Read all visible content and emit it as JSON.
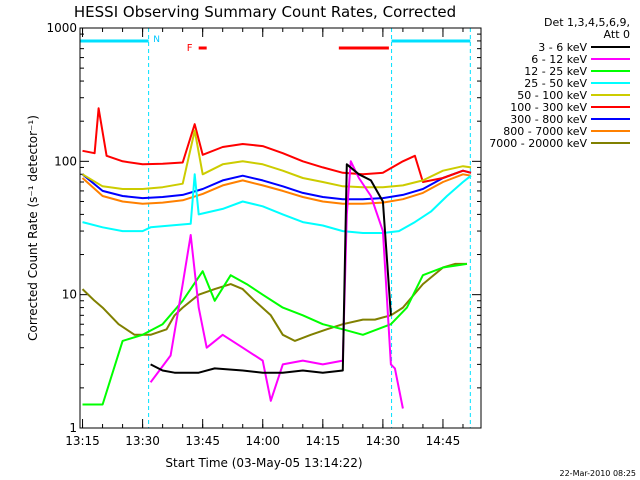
{
  "chart_data": {
    "type": "line",
    "title": "HESSI Observing Summary Count Rates, Corrected",
    "xlabel": "Start Time (03-May-05 13:14:22)",
    "ylabel": "Corrected Count Rate (s⁻¹ detector⁻¹)",
    "x_ticks": [
      "13:15",
      "13:30",
      "13:45",
      "14:00",
      "14:15",
      "14:30",
      "14:45"
    ],
    "y_ticks": [
      "1",
      "10",
      "100",
      "1000"
    ],
    "y_scale": "log",
    "ylim": [
      1,
      1000
    ],
    "xlim": [
      "13:14:22",
      "14:54:30"
    ],
    "legend_header": [
      "Det 1,3,4,5,6,9,",
      "Att 0"
    ],
    "legend_position": "right",
    "night_boundaries": [
      "13:31:30",
      "14:32:10",
      "14:51:50"
    ],
    "saa_bar": {
      "label": "N",
      "segments": [
        [
          "13:14:22",
          "13:31:30"
        ],
        [
          "14:32:10",
          "14:51:50"
        ]
      ]
    },
    "flare_bar": {
      "label": "F",
      "segments": [
        [
          "13:44:00",
          "13:46:00"
        ],
        [
          "14:19:00",
          "14:31:30"
        ]
      ]
    },
    "series": [
      {
        "name": "3 - 6 keV",
        "color": "#000000",
        "points": [
          [
            "13:32",
            3.0
          ],
          [
            "13:35",
            2.7
          ],
          [
            "13:38",
            2.6
          ],
          [
            "13:44",
            2.6
          ],
          [
            "13:48",
            2.8
          ],
          [
            "13:55",
            2.7
          ],
          [
            "14:00",
            2.6
          ],
          [
            "14:05",
            2.6
          ],
          [
            "14:10",
            2.7
          ],
          [
            "14:15",
            2.6
          ],
          [
            "14:20",
            2.7
          ],
          [
            "14:21",
            95
          ],
          [
            "14:24",
            80
          ],
          [
            "14:27",
            72
          ],
          [
            "14:30",
            50
          ],
          [
            "14:32",
            7
          ]
        ]
      },
      {
        "name": "6 - 12 keV",
        "color": "#ff00ff",
        "points": [
          [
            "13:32",
            2.2
          ],
          [
            "13:37",
            3.5
          ],
          [
            "13:40",
            12
          ],
          [
            "13:42",
            28
          ],
          [
            "13:44",
            8
          ],
          [
            "13:46",
            4
          ],
          [
            "13:50",
            5
          ],
          [
            "13:55",
            4
          ],
          [
            "14:00",
            3.2
          ],
          [
            "14:02",
            1.6
          ],
          [
            "14:05",
            3
          ],
          [
            "14:10",
            3.2
          ],
          [
            "14:15",
            3
          ],
          [
            "14:20",
            3.2
          ],
          [
            "14:21",
            40
          ],
          [
            "14:22",
            100
          ],
          [
            "14:24",
            75
          ],
          [
            "14:27",
            55
          ],
          [
            "14:30",
            30
          ],
          [
            "14:32",
            3
          ],
          [
            "14:33",
            2.8
          ],
          [
            "14:35",
            1.4
          ]
        ]
      },
      {
        "name": "12 - 25 keV",
        "color": "#00ff00",
        "points": [
          [
            "13:15",
            1.5
          ],
          [
            "13:20",
            1.5
          ],
          [
            "13:25",
            4.5
          ],
          [
            "13:30",
            5
          ],
          [
            "13:35",
            6
          ],
          [
            "13:40",
            9
          ],
          [
            "13:45",
            15
          ],
          [
            "13:48",
            9
          ],
          [
            "13:52",
            14
          ],
          [
            "13:56",
            12
          ],
          [
            "14:00",
            10
          ],
          [
            "14:05",
            8
          ],
          [
            "14:10",
            7
          ],
          [
            "14:15",
            6
          ],
          [
            "14:20",
            5.5
          ],
          [
            "14:25",
            5
          ],
          [
            "14:32",
            6
          ],
          [
            "14:36",
            8
          ],
          [
            "14:40",
            14
          ],
          [
            "14:45",
            16
          ],
          [
            "14:51",
            17
          ]
        ]
      },
      {
        "name": "25 - 50 keV",
        "color": "#00ffff",
        "points": [
          [
            "13:15",
            35
          ],
          [
            "13:20",
            32
          ],
          [
            "13:25",
            30
          ],
          [
            "13:30",
            30
          ],
          [
            "13:32",
            32
          ],
          [
            "13:37",
            33
          ],
          [
            "13:42",
            34
          ],
          [
            "13:43",
            80
          ],
          [
            "13:44",
            40
          ],
          [
            "13:50",
            44
          ],
          [
            "13:55",
            50
          ],
          [
            "14:00",
            46
          ],
          [
            "14:05",
            40
          ],
          [
            "14:10",
            35
          ],
          [
            "14:15",
            33
          ],
          [
            "14:20",
            30
          ],
          [
            "14:25",
            29
          ],
          [
            "14:30",
            29
          ],
          [
            "14:34",
            30
          ],
          [
            "14:38",
            35
          ],
          [
            "14:42",
            42
          ],
          [
            "14:46",
            55
          ],
          [
            "14:50",
            70
          ],
          [
            "14:52",
            78
          ]
        ]
      },
      {
        "name": "50 - 100 keV",
        "color": "#cccc00",
        "points": [
          [
            "13:15",
            80
          ],
          [
            "13:20",
            65
          ],
          [
            "13:25",
            62
          ],
          [
            "13:30",
            62
          ],
          [
            "13:35",
            64
          ],
          [
            "13:40",
            68
          ],
          [
            "13:43",
            170
          ],
          [
            "13:45",
            80
          ],
          [
            "13:50",
            95
          ],
          [
            "13:55",
            100
          ],
          [
            "14:00",
            95
          ],
          [
            "14:05",
            85
          ],
          [
            "14:10",
            75
          ],
          [
            "14:15",
            70
          ],
          [
            "14:20",
            65
          ],
          [
            "14:25",
            64
          ],
          [
            "14:30",
            64
          ],
          [
            "14:35",
            66
          ],
          [
            "14:40",
            72
          ],
          [
            "14:45",
            85
          ],
          [
            "14:50",
            92
          ],
          [
            "14:52",
            90
          ]
        ]
      },
      {
        "name": "100 - 300 keV",
        "color": "#ff0000",
        "points": [
          [
            "13:15",
            120
          ],
          [
            "13:18",
            115
          ],
          [
            "13:19",
            250
          ],
          [
            "13:21",
            110
          ],
          [
            "13:25",
            100
          ],
          [
            "13:30",
            95
          ],
          [
            "13:35",
            96
          ],
          [
            "13:40",
            98
          ],
          [
            "13:43",
            190
          ],
          [
            "13:45",
            112
          ],
          [
            "13:50",
            128
          ],
          [
            "13:55",
            135
          ],
          [
            "14:00",
            130
          ],
          [
            "14:05",
            115
          ],
          [
            "14:10",
            100
          ],
          [
            "14:15",
            90
          ],
          [
            "14:20",
            82
          ],
          [
            "14:25",
            80
          ],
          [
            "14:30",
            82
          ],
          [
            "14:35",
            100
          ],
          [
            "14:38",
            110
          ],
          [
            "14:40",
            70
          ],
          [
            "14:45",
            75
          ],
          [
            "14:50",
            85
          ],
          [
            "14:52",
            82
          ]
        ]
      },
      {
        "name": "300 - 800 keV",
        "color": "#0000ff",
        "points": [
          [
            "13:15",
            80
          ],
          [
            "13:20",
            60
          ],
          [
            "13:25",
            55
          ],
          [
            "13:30",
            53
          ],
          [
            "13:35",
            54
          ],
          [
            "13:40",
            56
          ],
          [
            "13:45",
            62
          ],
          [
            "13:50",
            72
          ],
          [
            "13:55",
            78
          ],
          [
            "14:00",
            72
          ],
          [
            "14:05",
            65
          ],
          [
            "14:10",
            58
          ],
          [
            "14:15",
            54
          ],
          [
            "14:20",
            52
          ],
          [
            "14:25",
            52
          ],
          [
            "14:30",
            53
          ],
          [
            "14:35",
            56
          ],
          [
            "14:40",
            62
          ],
          [
            "14:45",
            75
          ],
          [
            "14:50",
            85
          ],
          [
            "14:52",
            82
          ]
        ]
      },
      {
        "name": "800 - 7000 keV",
        "color": "#ff8000",
        "points": [
          [
            "13:15",
            75
          ],
          [
            "13:20",
            55
          ],
          [
            "13:25",
            50
          ],
          [
            "13:30",
            48
          ],
          [
            "13:35",
            49
          ],
          [
            "13:40",
            51
          ],
          [
            "13:45",
            57
          ],
          [
            "13:50",
            66
          ],
          [
            "13:55",
            72
          ],
          [
            "14:00",
            66
          ],
          [
            "14:05",
            60
          ],
          [
            "14:10",
            54
          ],
          [
            "14:15",
            50
          ],
          [
            "14:20",
            48
          ],
          [
            "14:25",
            48
          ],
          [
            "14:30",
            49
          ],
          [
            "14:35",
            52
          ],
          [
            "14:40",
            58
          ],
          [
            "14:45",
            70
          ],
          [
            "14:50",
            80
          ],
          [
            "14:52",
            78
          ]
        ]
      },
      {
        "name": "7000 - 20000 keV",
        "color": "#808000",
        "points": [
          [
            "13:15",
            11
          ],
          [
            "13:18",
            9
          ],
          [
            "13:20",
            8
          ],
          [
            "13:24",
            6
          ],
          [
            "13:28",
            5
          ],
          [
            "13:32",
            5
          ],
          [
            "13:36",
            5.5
          ],
          [
            "13:38",
            7
          ],
          [
            "13:40",
            8
          ],
          [
            "13:44",
            10
          ],
          [
            "13:48",
            11
          ],
          [
            "13:52",
            12
          ],
          [
            "13:55",
            11
          ],
          [
            "13:58",
            9
          ],
          [
            "14:02",
            7
          ],
          [
            "14:05",
            5
          ],
          [
            "14:08",
            4.5
          ],
          [
            "14:12",
            5
          ],
          [
            "14:16",
            5.5
          ],
          [
            "14:20",
            6
          ],
          [
            "14:25",
            6.5
          ],
          [
            "14:28",
            6.5
          ],
          [
            "14:32",
            7
          ],
          [
            "14:35",
            8
          ],
          [
            "14:40",
            12
          ],
          [
            "14:45",
            16
          ],
          [
            "14:48",
            17
          ],
          [
            "14:51",
            17
          ]
        ]
      }
    ]
  },
  "footer": {
    "date_stamp": "22-Mar-2010 08:25"
  }
}
